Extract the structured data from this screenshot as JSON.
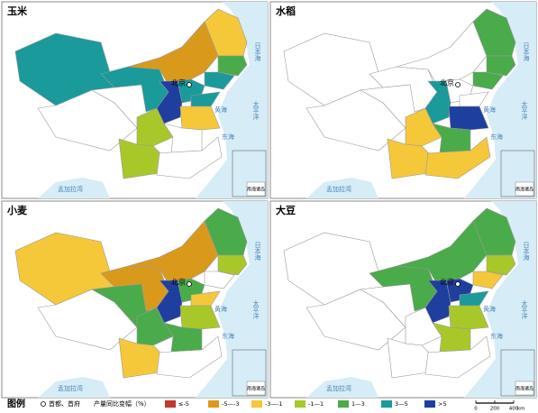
{
  "panels": [
    {
      "title": "玉米",
      "fills": [
        "#1a9a9a",
        "#ffffff",
        "#ffffff",
        "#1a9a9a",
        "#d99a1c",
        "#f5c83a",
        "#4aab4a",
        "#1a9a9a",
        "#1a9a9a",
        "#1f3f9f",
        "#1a9a9a",
        "#f5c83a",
        "#a8c82a",
        "#ffffff",
        "#a8c82a",
        "#ffffff"
      ]
    },
    {
      "title": "水稻",
      "fills": [
        "#ffffff",
        "#ffffff",
        "#ffffff",
        "#ffffff",
        "#ffffff",
        "#4aab4a",
        "#4aab4a",
        "#4aab4a",
        "#ffffff",
        "#1a9a9a",
        "#ffffff",
        "#1f3f9f",
        "#f5c83a",
        "#4aab4a",
        "#f5c83a",
        "#f5c83a"
      ]
    },
    {
      "title": "小麦",
      "fills": [
        "#f5c83a",
        "#ffffff",
        "#4aab4a",
        "#d99a1c",
        "#d99a1c",
        "#4aab4a",
        "#a8c82a",
        "#ffffff",
        "#4aab4a",
        "#1f3f9f",
        "#f5c83a",
        "#a8c82a",
        "#4aab4a",
        "#4aab4a",
        "#f5c83a",
        "#ffffff"
      ]
    },
    {
      "title": "大豆",
      "fills": [
        "#ffffff",
        "#ffffff",
        "#ffffff",
        "#4aab4a",
        "#4aab4a",
        "#4aab4a",
        "#a8c82a",
        "#f5c83a",
        "#1f3f9f",
        "#1f3f9f",
        "#1a9a9a",
        "#a8c82a",
        "#ffffff",
        "#a8c82a",
        "#ffffff",
        "#ffffff"
      ]
    }
  ],
  "map_labels": {
    "capital": "北京",
    "yellow_sea": "黄海",
    "east_sea": "东海",
    "pacific": "太平洋",
    "japan_sea": "日本海",
    "bengal": "孟加拉湾",
    "inset": "南海诸岛"
  },
  "legend": {
    "title": "图例",
    "capital": "首都、首府",
    "caption": "产量同比变幅（%）",
    "items": [
      {
        "label": "≤-5",
        "color": "#c0392b"
      },
      {
        "label": "-5—-3",
        "color": "#d99a1c"
      },
      {
        "label": "-3—-1",
        "color": "#f5c83a"
      },
      {
        "label": "-1—1",
        "color": "#a8c82a"
      },
      {
        "label": "1—3",
        "color": "#4aab4a"
      },
      {
        "label": "3—5",
        "color": "#1a9a9a"
      },
      {
        "label": ">5",
        "color": "#1f3f9f"
      }
    ]
  },
  "scale": {
    "ticks": [
      0,
      200,
      400
    ],
    "unit": "km"
  }
}
